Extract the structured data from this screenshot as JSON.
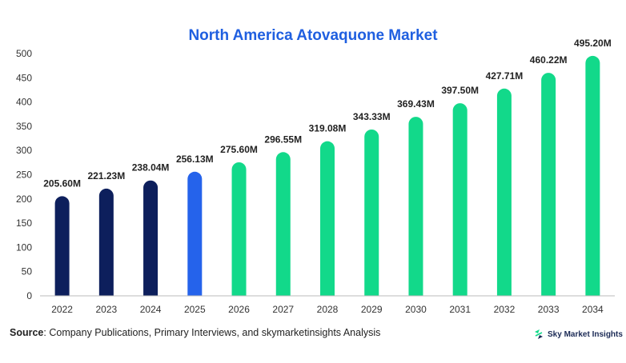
{
  "chart_data": {
    "type": "bar",
    "title": "North America Atovaquone Market",
    "categories": [
      "2022",
      "2023",
      "2024",
      "2025",
      "2026",
      "2027",
      "2028",
      "2029",
      "2030",
      "2031",
      "2032",
      "2033",
      "2034"
    ],
    "values": [
      205.6,
      221.23,
      238.04,
      256.13,
      275.6,
      296.55,
      319.08,
      343.33,
      369.43,
      397.5,
      427.71,
      460.22,
      495.2
    ],
    "data_labels": [
      "205.60M",
      "221.23M",
      "238.04M",
      "256.13M",
      "275.60M",
      "296.55M",
      "319.08M",
      "343.33M",
      "369.43M",
      "397.50M",
      "427.71M",
      "460.22M",
      "495.20M"
    ],
    "bar_colors": [
      "#0d1f5c",
      "#0d1f5c",
      "#0d1f5c",
      "#2563eb",
      "#12d98a",
      "#12d98a",
      "#12d98a",
      "#12d98a",
      "#12d98a",
      "#12d98a",
      "#12d98a",
      "#12d98a",
      "#12d98a"
    ],
    "ylim": [
      0,
      500
    ],
    "yticks": [
      0,
      50,
      100,
      150,
      200,
      250,
      300,
      350,
      400,
      450,
      500
    ],
    "xlabel": "",
    "ylabel": "",
    "grid": false,
    "legend": "none"
  },
  "footer": {
    "source_label": "Source",
    "source_text": ": Company Publications, Primary Interviews, and skymarketinsights Analysis",
    "brand_name": "Sky Market Insights"
  },
  "colors": {
    "title": "#1f5fe0",
    "historical": "#0d1f5c",
    "base_year": "#2563eb",
    "forecast": "#12d98a"
  }
}
